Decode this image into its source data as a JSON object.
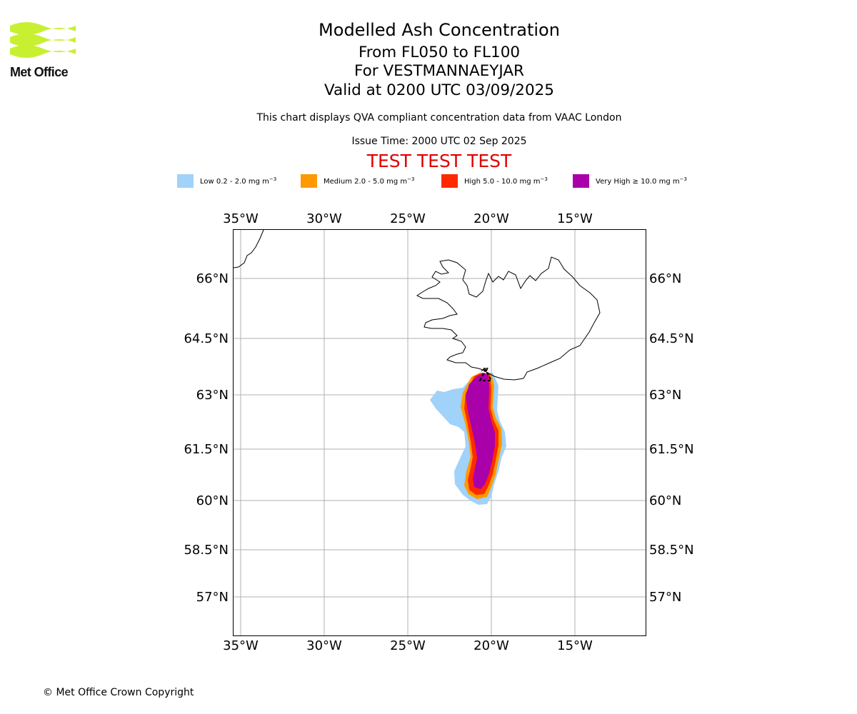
{
  "header": {
    "logo_text": "Met Office",
    "title": "Modelled Ash Concentration",
    "levels": "From FL050 to FL100",
    "volcano": "For VESTMANNAEYJAR",
    "valid": "Valid at 0200 UTC 03/09/2025",
    "description": "This chart displays QVA compliant concentration data from VAAC London",
    "issue_time": "Issue Time: 2000 UTC 02 Sep 2025",
    "test_banner": "TEST TEST TEST"
  },
  "legend": [
    {
      "label": "Low 0.2 - 2.0 mg m",
      "color": "#a0d2fa"
    },
    {
      "label": "Medium 2.0 - 5.0 mg m",
      "color": "#ff9900"
    },
    {
      "label": "High 5.0 - 10.0 mg m",
      "color": "#ff2a00"
    },
    {
      "label": "Very High ≥ 10.0 mg m",
      "color": "#aa00aa"
    }
  ],
  "legend_unit_exponent": "−3",
  "map": {
    "lon_ticks": [
      "35°W",
      "30°W",
      "25°W",
      "20°W",
      "15°W"
    ],
    "lat_ticks": [
      "66°N",
      "64.5°N",
      "63°N",
      "61.5°N",
      "60°N",
      "58.5°N",
      "57°N"
    ],
    "grid_color": "#b0b0b0"
  },
  "footer": {
    "copyright": "© Met Office Crown Copyright"
  }
}
